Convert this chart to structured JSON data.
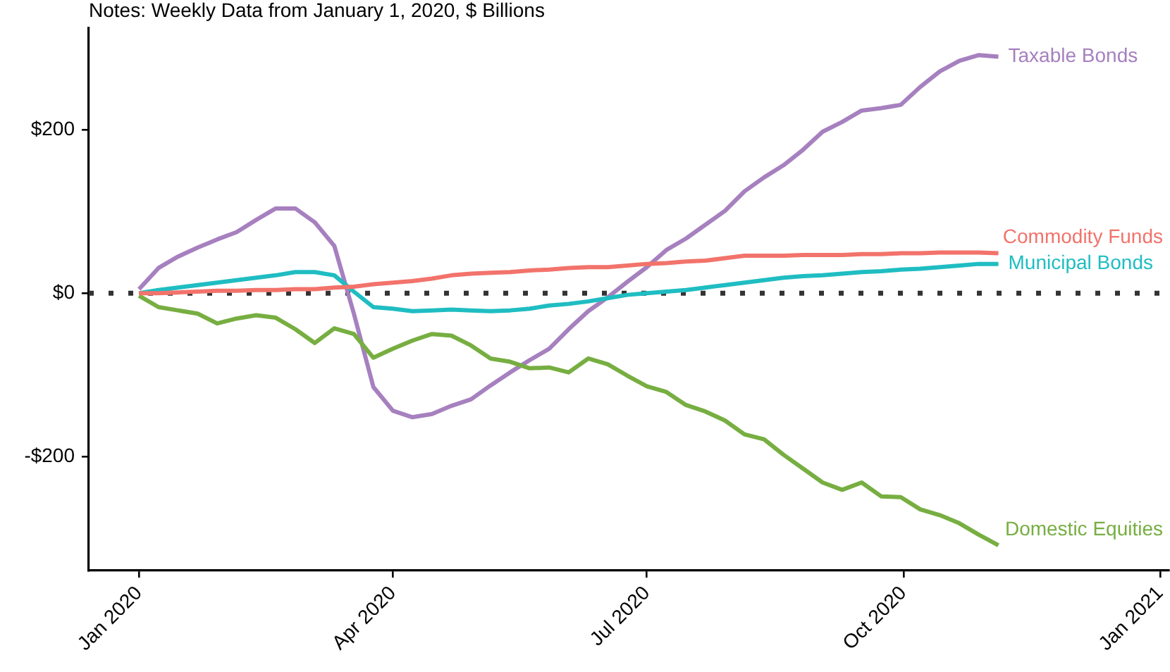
{
  "chart_data": {
    "type": "line",
    "annotations": [
      "Notes: Weekly Data from January 1, 2020, $ Billions"
    ],
    "x": [
      "2020-01-01",
      "2020-01-08",
      "2020-01-15",
      "2020-01-22",
      "2020-01-29",
      "2020-02-05",
      "2020-02-12",
      "2020-02-19",
      "2020-02-26",
      "2020-03-04",
      "2020-03-11",
      "2020-03-18",
      "2020-03-25",
      "2020-04-01",
      "2020-04-08",
      "2020-04-15",
      "2020-04-22",
      "2020-04-29",
      "2020-05-06",
      "2020-05-13",
      "2020-05-20",
      "2020-05-27",
      "2020-06-03",
      "2020-06-10",
      "2020-06-17",
      "2020-06-24",
      "2020-07-01",
      "2020-07-08",
      "2020-07-15",
      "2020-07-22",
      "2020-07-29",
      "2020-08-05",
      "2020-08-12",
      "2020-08-19",
      "2020-08-26",
      "2020-09-02",
      "2020-09-09",
      "2020-09-16",
      "2020-09-23",
      "2020-09-30",
      "2020-10-07",
      "2020-10-14",
      "2020-10-21",
      "2020-10-28",
      "2020-11-04"
    ],
    "series": [
      {
        "name": "Commodity Funds",
        "color": "#f2736b",
        "values": [
          0,
          0,
          1,
          2,
          3,
          3,
          4,
          4,
          5,
          5,
          7,
          8,
          11,
          13,
          15,
          18,
          22,
          24,
          25,
          26,
          28,
          29,
          31,
          32,
          32,
          34,
          36,
          37,
          39,
          40,
          43,
          46,
          46,
          46,
          47,
          47,
          47,
          48,
          48,
          49,
          49,
          50,
          50,
          50,
          49
        ]
      },
      {
        "name": "Domestic Equities",
        "color": "#77ae41",
        "values": [
          -3,
          -17,
          -21,
          -25,
          -37,
          -31,
          -27,
          -30,
          -44,
          -61,
          -43,
          -50,
          -79,
          -68,
          -58,
          -50,
          -52,
          -64,
          -80,
          -84,
          -92,
          -91,
          -97,
          -80,
          -87,
          -101,
          -114,
          -121,
          -137,
          -145,
          -156,
          -173,
          -179,
          -198,
          -215,
          -232,
          -241,
          -232,
          -249,
          -250,
          -265,
          -272,
          -282,
          -296,
          -309
        ]
      },
      {
        "name": "Municipal Bonds",
        "color": "#1fbdc2",
        "values": [
          0,
          4,
          7,
          10,
          13,
          16,
          19,
          22,
          26,
          26,
          22,
          2,
          -17,
          -19,
          -22,
          -21,
          -20,
          -21,
          -22,
          -21,
          -19,
          -15,
          -13,
          -10,
          -6,
          -2,
          0,
          2,
          4,
          7,
          10,
          13,
          16,
          19,
          21,
          22,
          24,
          26,
          27,
          29,
          30,
          32,
          34,
          36,
          36
        ]
      },
      {
        "name": "Taxable Bonds",
        "color": "#a680bf",
        "values": [
          5,
          31,
          45,
          56,
          66,
          75,
          90,
          104,
          104,
          87,
          58,
          -25,
          -115,
          -144,
          -152,
          -148,
          -138,
          -130,
          -113,
          -97,
          -82,
          -68,
          -44,
          -22,
          -5,
          14,
          32,
          53,
          67,
          84,
          101,
          125,
          142,
          157,
          176,
          198,
          210,
          224,
          227,
          231,
          253,
          272,
          285,
          292,
          290
        ]
      }
    ],
    "xlim": [
      "2019-12-14",
      "2021-01-04"
    ],
    "xticks": [
      {
        "value": "2020-01-01",
        "label": "Jan 2020"
      },
      {
        "value": "2020-04-01",
        "label": "Apr 2020"
      },
      {
        "value": "2020-07-01",
        "label": "Jul 2020"
      },
      {
        "value": "2020-10-01",
        "label": "Oct 2020"
      },
      {
        "value": "2021-01-01",
        "label": "Jan 2021"
      }
    ],
    "ylim": [
      -340,
      325
    ],
    "yticks": [
      {
        "value": -200,
        "label": "-$200"
      },
      {
        "value": 0,
        "label": "$0"
      },
      {
        "value": 200,
        "label": "$200"
      }
    ],
    "ref_lines": [
      {
        "axis": "y",
        "value": 0,
        "color": "#333333",
        "line_style": "dotted"
      }
    ],
    "grid": false,
    "legend": false,
    "marker": "none",
    "line_style": "solid"
  }
}
